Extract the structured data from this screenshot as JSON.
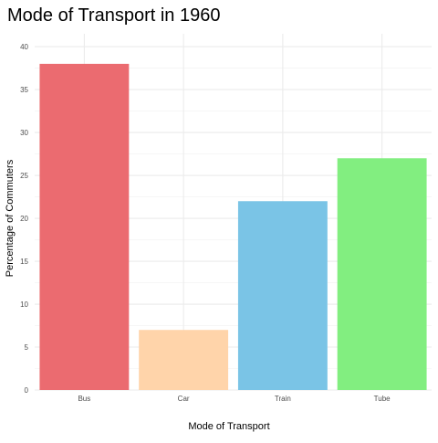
{
  "chart_data": {
    "type": "bar",
    "title": "Mode of Transport in 1960",
    "xlabel": "Mode of Transport",
    "ylabel": "Percentage of Commuters",
    "categories": [
      "Bus",
      "Car",
      "Train",
      "Tube"
    ],
    "values": [
      38,
      7,
      22,
      27
    ],
    "colors": [
      "#EB6B70",
      "#FFD4AA",
      "#7AC4E6",
      "#82EE80"
    ],
    "ylim": [
      0,
      41.5
    ],
    "yticks": [
      0,
      5,
      10,
      15,
      20,
      25,
      30,
      35,
      40
    ],
    "grid": true,
    "legend": "none"
  }
}
